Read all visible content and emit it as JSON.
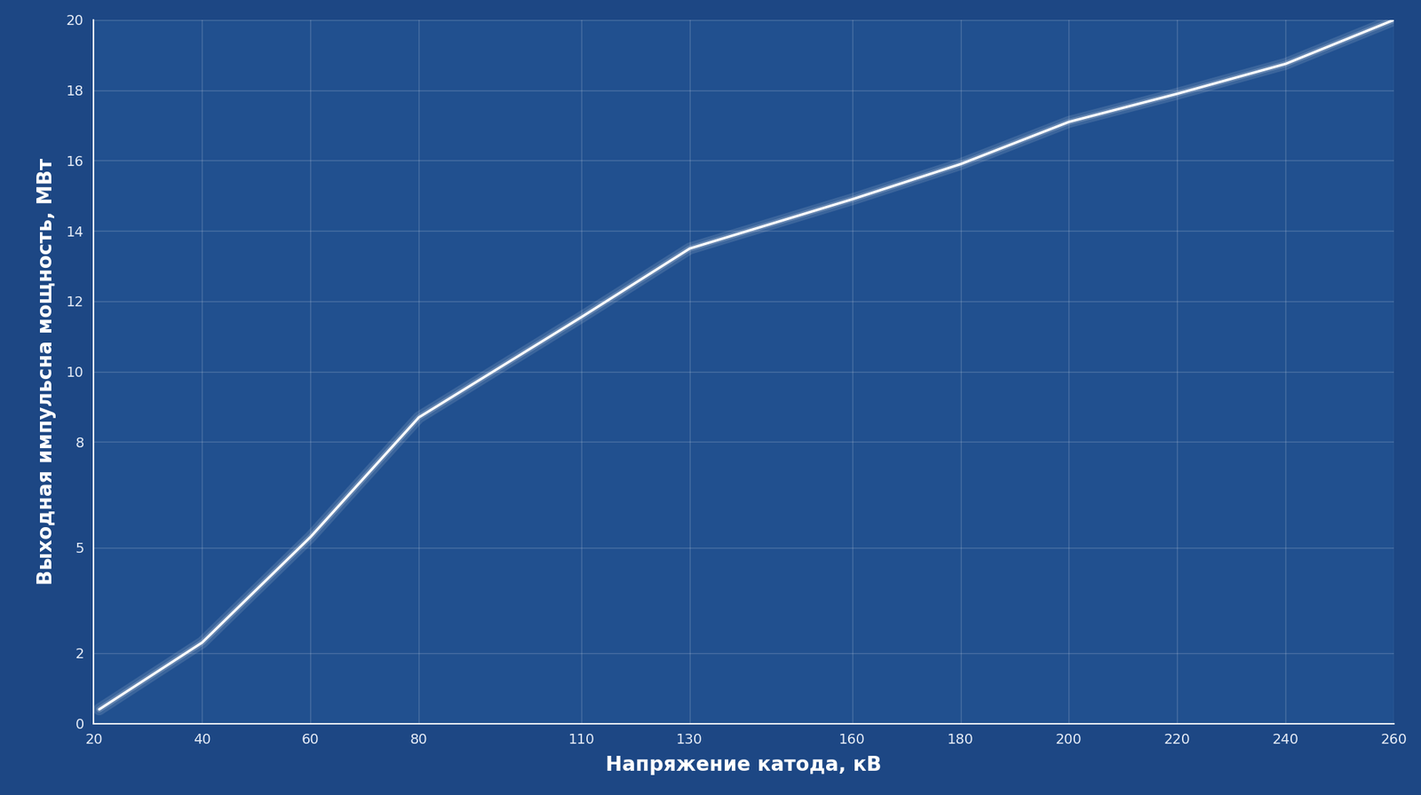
{
  "chart_data": {
    "type": "line",
    "x_label": "Напряжение катода, кВ",
    "y_label": "Выходная импульсна мощность, МВт",
    "x": [
      21,
      40,
      60,
      70,
      80,
      110,
      130,
      160,
      180,
      200,
      220,
      240,
      260
    ],
    "values": [
      0.4,
      2.3,
      5.3,
      7.0,
      8.7,
      11.55,
      13.5,
      14.9,
      15.9,
      17.1,
      17.9,
      18.75,
      20.0
    ],
    "color": "#ffffff",
    "xlim": [
      20,
      260
    ],
    "xticks": [
      20,
      40,
      60,
      80,
      110,
      130,
      160,
      180,
      200,
      220,
      240,
      260
    ],
    "ylim": [
      0,
      20
    ],
    "yticks": [
      0,
      2,
      5,
      8,
      10,
      12,
      14,
      16,
      18,
      20
    ],
    "grid": true
  }
}
